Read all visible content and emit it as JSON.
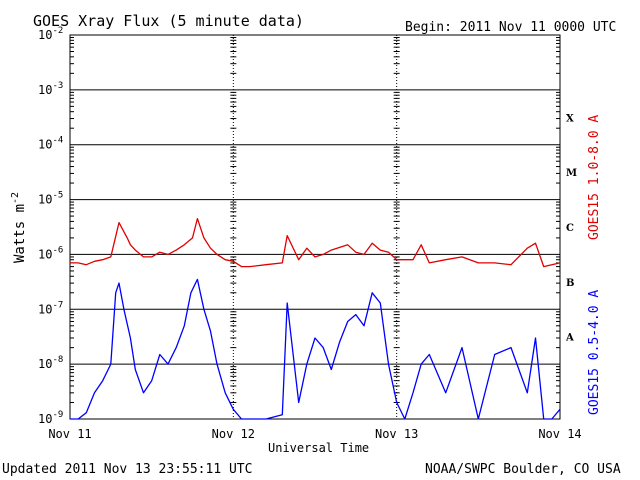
{
  "header": {
    "title": "GOES Xray Flux (5 minute data)",
    "begin": "Begin:  2011 Nov 11 0000 UTC"
  },
  "footer": {
    "updated": "Updated 2011 Nov 13 23:55:11 UTC",
    "credit": "NOAA/SWPC Boulder, CO USA"
  },
  "chart_data": {
    "type": "line",
    "title": "GOES Xray Flux (5 minute data)",
    "xlabel": "Universal Time",
    "ylabel": "Watts m",
    "ylabel_sup": "-2",
    "yscale": "log",
    "ylim": [
      1e-09,
      0.01
    ],
    "xlim": [
      0,
      3
    ],
    "x_unit": "days since 2011 Nov 11 00:00 UTC",
    "x_ticks": [
      {
        "v": 0,
        "label": "Nov 11"
      },
      {
        "v": 1,
        "label": "Nov 12"
      },
      {
        "v": 2,
        "label": "Nov 13"
      },
      {
        "v": 3,
        "label": "Nov 14"
      }
    ],
    "y_ticks": [
      {
        "exp": -9,
        "base": "10",
        "sup": "-9"
      },
      {
        "exp": -8,
        "base": "10",
        "sup": "-8"
      },
      {
        "exp": -7,
        "base": "10",
        "sup": "-7"
      },
      {
        "exp": -6,
        "base": "10",
        "sup": "-6"
      },
      {
        "exp": -5,
        "base": "10",
        "sup": "-5"
      },
      {
        "exp": -4,
        "base": "10",
        "sup": "-4"
      },
      {
        "exp": -3,
        "base": "10",
        "sup": "-3"
      },
      {
        "exp": -2,
        "base": "10",
        "sup": "-2"
      }
    ],
    "flare_classes": [
      {
        "label": "A",
        "exp": -7.5
      },
      {
        "label": "B",
        "exp": -6.5
      },
      {
        "label": "C",
        "exp": -5.5
      },
      {
        "label": "M",
        "exp": -4.5
      },
      {
        "label": "X",
        "exp": -3.5
      }
    ],
    "grid": true,
    "series": [
      {
        "name": "GOES15 1.0-8.0 A",
        "color": "#e00000",
        "x": [
          0,
          0.05,
          0.1,
          0.15,
          0.2,
          0.25,
          0.3,
          0.35,
          0.37,
          0.4,
          0.45,
          0.5,
          0.55,
          0.6,
          0.65,
          0.7,
          0.75,
          0.78,
          0.82,
          0.86,
          0.9,
          0.95,
          1.0,
          1.05,
          1.1,
          1.2,
          1.3,
          1.33,
          1.4,
          1.45,
          1.5,
          1.55,
          1.6,
          1.7,
          1.75,
          1.8,
          1.85,
          1.9,
          1.95,
          2.0,
          2.05,
          2.1,
          2.15,
          2.2,
          2.3,
          2.4,
          2.5,
          2.6,
          2.7,
          2.8,
          2.85,
          2.9,
          2.95,
          3.0
        ],
        "y": [
          7e-07,
          7e-07,
          6.5e-07,
          7.5e-07,
          8e-07,
          9e-07,
          3.8e-06,
          2e-06,
          1.5e-06,
          1.2e-06,
          9e-07,
          9e-07,
          1.1e-06,
          1e-06,
          1.2e-06,
          1.5e-06,
          2e-06,
          4.5e-06,
          2e-06,
          1.3e-06,
          1e-06,
          8e-07,
          7.5e-07,
          6e-07,
          6e-07,
          6.5e-07,
          7e-07,
          2.2e-06,
          8e-07,
          1.3e-06,
          9e-07,
          1e-06,
          1.2e-06,
          1.5e-06,
          1.1e-06,
          1e-06,
          1.6e-06,
          1.2e-06,
          1.1e-06,
          8e-07,
          8e-07,
          8e-07,
          1.5e-06,
          7e-07,
          8e-07,
          9e-07,
          7e-07,
          7e-07,
          6.5e-07,
          1.3e-06,
          1.6e-06,
          6e-07,
          6.5e-07,
          7e-07
        ]
      },
      {
        "name": "GOES15 0.5-4.0 A",
        "color": "#0000ff",
        "x": [
          0,
          0.05,
          0.1,
          0.15,
          0.2,
          0.25,
          0.28,
          0.3,
          0.33,
          0.37,
          0.4,
          0.45,
          0.5,
          0.55,
          0.6,
          0.65,
          0.7,
          0.74,
          0.78,
          0.82,
          0.86,
          0.9,
          0.95,
          1.0,
          1.05,
          1.1,
          1.2,
          1.3,
          1.33,
          1.4,
          1.45,
          1.5,
          1.55,
          1.6,
          1.65,
          1.7,
          1.75,
          1.8,
          1.85,
          1.9,
          1.95,
          2.0,
          2.05,
          2.1,
          2.15,
          2.2,
          2.3,
          2.4,
          2.5,
          2.6,
          2.7,
          2.8,
          2.85,
          2.9,
          2.95,
          3.0
        ],
        "y": [
          1e-09,
          1e-09,
          1.3e-09,
          3e-09,
          5e-09,
          1e-08,
          2e-07,
          3e-07,
          1e-07,
          3e-08,
          8e-09,
          3e-09,
          5e-09,
          1.5e-08,
          1e-08,
          2e-08,
          5e-08,
          2e-07,
          3.5e-07,
          1e-07,
          4e-08,
          1e-08,
          3e-09,
          1.5e-09,
          1e-09,
          1e-09,
          1e-09,
          1.2e-09,
          1.3e-07,
          2e-09,
          1e-08,
          3e-08,
          2e-08,
          8e-09,
          2.5e-08,
          6e-08,
          8e-08,
          5e-08,
          2e-07,
          1.3e-07,
          1e-08,
          2e-09,
          1e-09,
          3e-09,
          1e-08,
          1.5e-08,
          3e-09,
          2e-08,
          1e-09,
          1.5e-08,
          2e-08,
          3e-09,
          3e-08,
          1e-09,
          1e-09,
          1.5e-09
        ]
      }
    ]
  }
}
